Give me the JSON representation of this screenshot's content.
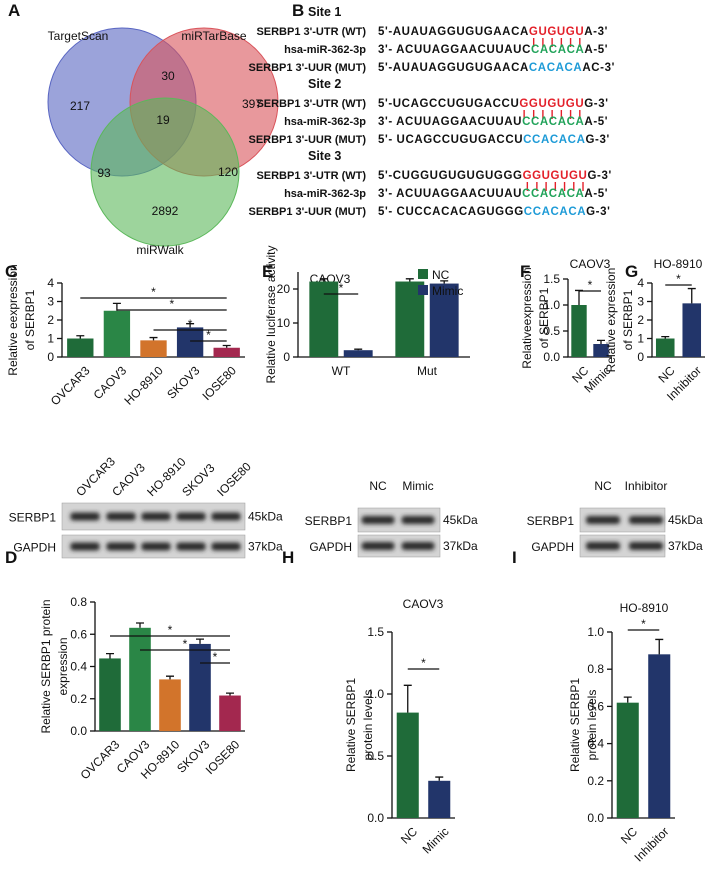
{
  "panel_labels": [
    "A",
    "B",
    "C",
    "D",
    "E",
    "F",
    "G",
    "H",
    "I"
  ],
  "venn": {
    "sets": [
      {
        "name": "TargetScan",
        "color": "#5865c2"
      },
      {
        "name": "miRTarBase",
        "color": "#d9535a"
      },
      {
        "name": "miRWalk",
        "color": "#5bb85a"
      }
    ],
    "regions": [
      {
        "sets": [
          "TargetScan"
        ],
        "count": 217
      },
      {
        "sets": [
          "TargetScan",
          "miRTarBase"
        ],
        "count": 30
      },
      {
        "sets": [
          "miRTarBase"
        ],
        "count": 397
      },
      {
        "sets": [
          "TargetScan",
          "miRTarBase",
          "miRWalk"
        ],
        "count": 19
      },
      {
        "sets": [
          "TargetScan",
          "miRWalk"
        ],
        "count": 93
      },
      {
        "sets": [
          "miRTarBase",
          "miRWalk"
        ],
        "count": 120
      },
      {
        "sets": [
          "miRWalk"
        ],
        "count": 2892
      }
    ]
  },
  "sequences": {
    "sites": [
      {
        "title": "Site 1",
        "rows": [
          {
            "label": "SERBP1 3'-UTR (WT)",
            "segments": [
              {
                "text": "5'-AUAUAGGUGUGAACA"
              },
              {
                "text": "GUGUGU",
                "color": "#e3202a"
              },
              {
                "text": "A-3'"
              }
            ]
          },
          {
            "label": "hsa-miR-362-3p",
            "segments": [
              {
                "text": "3'- ACUUAGGAACUUAUC"
              },
              {
                "text": "CACACA",
                "color": "#21a35a"
              },
              {
                "text": "A-5'"
              }
            ]
          },
          {
            "label": "SERBP1 3'-UUR (MUT)",
            "segments": [
              {
                "text": "5'-AUAUAGGUGUGAACA"
              },
              {
                "text": "CACACA",
                "color": "#1e9bd7"
              },
              {
                "text": "AC-3'"
              }
            ]
          }
        ]
      },
      {
        "title": "Site 2",
        "rows": [
          {
            "label": "SERBP1 3'-UTR (WT)",
            "segments": [
              {
                "text": "5'-UCAGCCUGUGACCU"
              },
              {
                "text": "GGUGUGU",
                "color": "#e3202a"
              },
              {
                "text": "G-3'"
              }
            ]
          },
          {
            "label": "hsa-miR-362-3p",
            "segments": [
              {
                "text": "3'- ACUUAGGAACUUAU"
              },
              {
                "text": "CCACACA",
                "color": "#21a35a"
              },
              {
                "text": "A-5'"
              }
            ]
          },
          {
            "label": "SERBP1 3'-UUR (MUT)",
            "segments": [
              {
                "text": "5'- UCAGCCUGUGACCU"
              },
              {
                "text": "CCACACA",
                "color": "#1e9bd7"
              },
              {
                "text": "G-3'"
              }
            ]
          }
        ]
      },
      {
        "title": "Site 3",
        "rows": [
          {
            "label": "SERBP1 3'-UTR (WT)",
            "segments": [
              {
                "text": "5'-CUGGUGUGUGUGGG"
              },
              {
                "text": "GGUGUGU",
                "color": "#e3202a"
              },
              {
                "text": "G-3'"
              }
            ]
          },
          {
            "label": "hsa-miR-362-3p",
            "segments": [
              {
                "text": "3'- ACUUAGGAACUUAU"
              },
              {
                "text": "CCACACA",
                "color": "#21a35a"
              },
              {
                "text": "A-5'"
              }
            ]
          },
          {
            "label": "SERBP1 3'-UUR (MUT)",
            "segments": [
              {
                "text": "5'- CUCCACACAGUGGG"
              },
              {
                "text": "CCACACA",
                "color": "#1e9bd7"
              },
              {
                "text": "G-3'"
              }
            ]
          }
        ]
      }
    ]
  },
  "blots": [
    {
      "lanes": [
        "OVCAR3",
        "CAOV3",
        "HO-8910",
        "SKOV3",
        "IOSE80"
      ],
      "rows": [
        {
          "label": "SERBP1",
          "size": "45kDa"
        },
        {
          "label": "GAPDH",
          "size": "37kDa"
        }
      ]
    },
    {
      "lanes": [
        "NC",
        "Mimic"
      ],
      "rows": [
        {
          "label": "SERBP1",
          "size": "45kDa"
        },
        {
          "label": "GAPDH",
          "size": "37kDa"
        }
      ]
    },
    {
      "lanes": [
        "NC",
        "Inhibitor"
      ],
      "rows": [
        {
          "label": "SERBP1",
          "size": "45kDa"
        },
        {
          "label": "GAPDH",
          "size": "37kDa"
        }
      ]
    }
  ],
  "chart_data": [
    {
      "type": "bar",
      "ylabel": [
        "Relative eexpression",
        "of SERBP1"
      ],
      "categories": [
        "OVCAR3",
        "CAOV3",
        "HO-8910",
        "SKOV3",
        "IOSE80"
      ],
      "values": [
        1.0,
        2.5,
        0.9,
        1.6,
        0.5
      ],
      "errors": [
        0.15,
        0.4,
        0.15,
        0.2,
        0.12
      ],
      "colors": [
        "#1f6b39",
        "#2a8646",
        "#d2742b",
        "#22356a",
        "#a3284f"
      ],
      "ylim": [
        0,
        4
      ],
      "yticks": [
        0,
        1,
        2,
        3,
        4
      ],
      "significance": [
        {
          "label": "*",
          "between": [
            "OVCAR3",
            "IOSE80"
          ]
        },
        {
          "label": "*",
          "between": [
            "CAOV3",
            "IOSE80"
          ]
        },
        {
          "label": "*",
          "between": [
            "HO-8910",
            "IOSE80"
          ]
        },
        {
          "label": "*",
          "between": [
            "SKOV3",
            "IOSE80"
          ]
        }
      ]
    },
    {
      "type": "bar",
      "title": "CAOV3",
      "ylabel": [
        "Relative luciferase activity"
      ],
      "categories": [
        "WT",
        "Mut"
      ],
      "series": [
        {
          "name": "NC",
          "color": "#1f6b39",
          "values": [
            22.2,
            22.2
          ],
          "errors": [
            0.8,
            0.8
          ]
        },
        {
          "name": "Mimic",
          "color": "#22356a",
          "values": [
            2.0,
            21.6
          ],
          "errors": [
            0.3,
            0.8
          ]
        }
      ],
      "ylim": [
        0,
        25
      ],
      "yticks": [
        0,
        10,
        20
      ],
      "significance": [
        {
          "label": "*",
          "category": "WT",
          "between": [
            "NC",
            "Mimic"
          ]
        }
      ]
    },
    {
      "type": "bar",
      "title": "CAOV3",
      "ylabel": [
        "Relativeexpression",
        "of SERBP1"
      ],
      "categories": [
        "NC",
        "Mimic"
      ],
      "values": [
        1.0,
        0.25
      ],
      "errors": [
        0.28,
        0.07
      ],
      "colors": [
        "#1f6b39",
        "#22356a"
      ],
      "ylim": [
        0,
        1.5
      ],
      "yticks": [
        {
          "value": 0,
          "label": "0.0"
        },
        0.5,
        {
          "value": 1,
          "label": "1.0"
        },
        1.5
      ],
      "significance": [
        {
          "label": "*",
          "between": [
            "NC",
            "Mimic"
          ]
        }
      ]
    },
    {
      "type": "bar",
      "title": "HO-8910",
      "ylabel": [
        "Relative expression",
        "of SERBP1"
      ],
      "categories": [
        "NC",
        "Inhibitor"
      ],
      "values": [
        1.0,
        2.9
      ],
      "errors": [
        0.1,
        0.8
      ],
      "colors": [
        "#1f6b39",
        "#22356a"
      ],
      "ylim": [
        0,
        4
      ],
      "yticks": [
        0,
        1,
        2,
        3,
        4
      ],
      "significance": [
        {
          "label": "*",
          "between": [
            "NC",
            "Inhibitor"
          ]
        }
      ]
    },
    {
      "type": "bar",
      "ylabel": [
        "Relative SERBP1 protein",
        "expression"
      ],
      "categories": [
        "OVCAR3",
        "CAOV3",
        "HO-8910",
        "SKOV3",
        "IOSE80"
      ],
      "values": [
        0.45,
        0.64,
        0.32,
        0.54,
        0.22
      ],
      "errors": [
        0.03,
        0.03,
        0.02,
        0.03,
        0.015
      ],
      "colors": [
        "#1f6b39",
        "#2a8646",
        "#d2742b",
        "#22356a",
        "#a3284f"
      ],
      "ylim": [
        0,
        0.8
      ],
      "yticks": [
        {
          "value": 0,
          "label": "0.0"
        },
        0.2,
        0.4,
        0.6,
        0.8
      ],
      "significance": [
        {
          "label": "*",
          "between": [
            "OVCAR3",
            "IOSE80"
          ]
        },
        {
          "label": "*",
          "between": [
            "CAOV3",
            "IOSE80"
          ]
        },
        {
          "label": "*",
          "between": [
            "SKOV3",
            "IOSE80"
          ]
        }
      ]
    },
    {
      "type": "bar",
      "title": "CAOV3",
      "ylabel": [
        "Relative SERBP1",
        "protein levels"
      ],
      "categories": [
        "NC",
        "Mimic"
      ],
      "values": [
        0.85,
        0.3
      ],
      "errors": [
        0.22,
        0.03
      ],
      "colors": [
        "#1f6b39",
        "#22356a"
      ],
      "ylim": [
        0,
        1.5
      ],
      "yticks": [
        {
          "value": 0,
          "label": "0.0"
        },
        0.5,
        {
          "value": 1,
          "label": "1.0"
        },
        1.5
      ],
      "significance": [
        {
          "label": "*",
          "between": [
            "NC",
            "Mimic"
          ]
        }
      ]
    },
    {
      "type": "bar",
      "title": "HO-8910",
      "ylabel": [
        "Relative SERBP1",
        "protein levels"
      ],
      "categories": [
        "NC",
        "Inhibitor"
      ],
      "values": [
        0.62,
        0.88
      ],
      "errors": [
        0.03,
        0.08
      ],
      "colors": [
        "#1f6b39",
        "#22356a"
      ],
      "ylim": [
        0,
        1
      ],
      "yticks": [
        {
          "value": 0,
          "label": "0.0"
        },
        0.2,
        0.4,
        0.6,
        0.8,
        {
          "value": 1,
          "label": "1.0"
        }
      ],
      "significance": [
        {
          "label": "*",
          "between": [
            "NC",
            "Inhibitor"
          ]
        }
      ]
    }
  ]
}
